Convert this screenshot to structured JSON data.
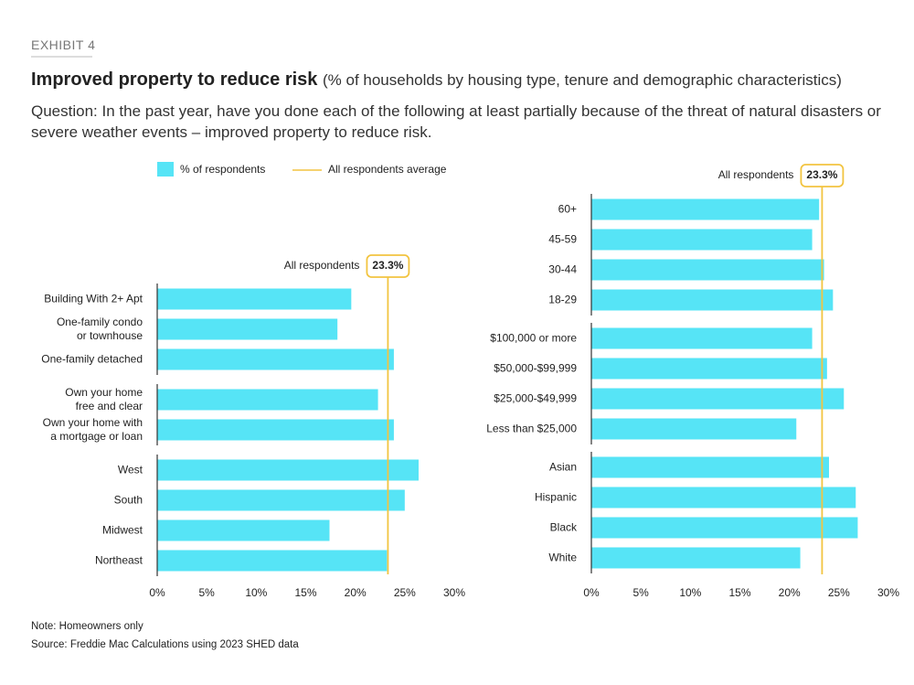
{
  "header": {
    "exhibit": "EXHIBIT 4",
    "title": "Improved property to reduce risk",
    "subtitle": "(% of households by housing type, tenure and demographic characteristics)",
    "question": "Question: In the past year, have you done each of the following at least partially because of the threat of natural disasters or severe weather events – improved property to reduce risk."
  },
  "legend": {
    "bar": "% of respondents",
    "line": "All respondents average"
  },
  "chart_data": [
    {
      "type": "bar",
      "orientation": "horizontal",
      "color": "#56e4f6",
      "average_color": "#f2c440",
      "xlim": [
        0,
        30
      ],
      "xticks": [
        {
          "value": 0,
          "label": "0%"
        },
        {
          "value": 5,
          "label": "5%"
        },
        {
          "value": 10,
          "label": "10%"
        },
        {
          "value": 15,
          "label": "15%"
        },
        {
          "value": 20,
          "label": "20%"
        },
        {
          "value": 25,
          "label": "25%"
        },
        {
          "value": 30,
          "label": "30%"
        }
      ],
      "average_name": "All respondents",
      "average": {
        "value": 23.3,
        "label": "23.3%"
      },
      "groups": [
        {
          "categories": [
            "Building With 2+ Apt",
            "One-family condo\nor townhouse",
            "One-family detached"
          ],
          "values": [
            19.6,
            18.2,
            23.9
          ]
        },
        {
          "categories": [
            "Own your home\nfree and clear",
            "Own your home with\na mortgage or loan"
          ],
          "values": [
            22.3,
            23.9
          ]
        },
        {
          "categories": [
            "West",
            "South",
            "Midwest",
            "Northeast"
          ],
          "values": [
            26.4,
            25.0,
            17.4,
            23.2
          ]
        }
      ]
    },
    {
      "type": "bar",
      "orientation": "horizontal",
      "color": "#56e4f6",
      "average_color": "#f2c440",
      "xlim": [
        0,
        30
      ],
      "xticks": [
        {
          "value": 0,
          "label": "0%"
        },
        {
          "value": 5,
          "label": "5%"
        },
        {
          "value": 10,
          "label": "10%"
        },
        {
          "value": 15,
          "label": "15%"
        },
        {
          "value": 20,
          "label": "20%"
        },
        {
          "value": 25,
          "label": "25%"
        },
        {
          "value": 30,
          "label": "30%"
        }
      ],
      "average_name": "All respondents",
      "average": {
        "value": 23.3,
        "label": "23.3%"
      },
      "groups": [
        {
          "categories": [
            "60+",
            "45-59",
            "30-44",
            "18-29"
          ],
          "values": [
            23.0,
            22.3,
            23.5,
            24.4
          ]
        },
        {
          "categories": [
            "$100,000 or more",
            "$50,000-$99,999",
            "$25,000-$49,999",
            "Less than $25,000"
          ],
          "values": [
            22.3,
            23.8,
            25.5,
            20.7
          ]
        },
        {
          "categories": [
            "Asian",
            "Hispanic",
            "Black",
            "White"
          ],
          "values": [
            24.0,
            26.7,
            26.9,
            21.1
          ]
        }
      ]
    }
  ],
  "footer": {
    "note": "Note: Homeowners only",
    "source": "Source: Freddie Mac Calculations using 2023 SHED data"
  }
}
